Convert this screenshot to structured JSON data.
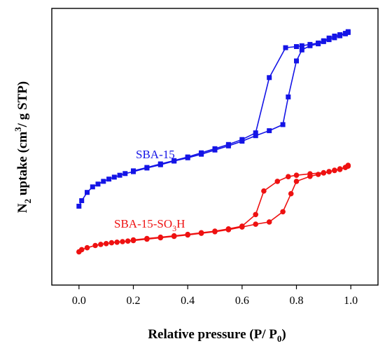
{
  "chart_data": {
    "type": "scatter",
    "xlabel_main": "Relative pressure (P/ P",
    "xlabel_sub": "0",
    "xlabel_end": ")",
    "ylabel_pre": "N",
    "ylabel_sub": "2",
    "ylabel_mid": " uptake (cm",
    "ylabel_sup": "3",
    "ylabel_end": "/ g STP)",
    "xlim": [
      -0.1,
      1.1
    ],
    "ylim": [
      0,
      100
    ],
    "y_ticks_labeled": false,
    "x_ticks": [
      "0.0",
      "0.2",
      "0.4",
      "0.6",
      "0.8",
      "1.0"
    ],
    "series": [
      {
        "name_pre": "SBA-15",
        "name_sub": "",
        "name_end": "",
        "color": "#1414e6",
        "marker": "square",
        "adsorption": [
          [
            0.0,
            28.5
          ],
          [
            0.01,
            30.5
          ],
          [
            0.03,
            33.5
          ],
          [
            0.05,
            35.5
          ],
          [
            0.07,
            36.5
          ],
          [
            0.09,
            37.5
          ],
          [
            0.11,
            38.3
          ],
          [
            0.13,
            39.0
          ],
          [
            0.15,
            39.7
          ],
          [
            0.17,
            40.3
          ],
          [
            0.2,
            41.0
          ],
          [
            0.25,
            42.3
          ],
          [
            0.3,
            43.5
          ],
          [
            0.35,
            44.8
          ],
          [
            0.4,
            46.0
          ],
          [
            0.45,
            47.3
          ],
          [
            0.5,
            48.8
          ],
          [
            0.55,
            50.3
          ],
          [
            0.6,
            52.0
          ],
          [
            0.65,
            54.0
          ],
          [
            0.7,
            55.8
          ],
          [
            0.75,
            58.0
          ],
          [
            0.77,
            68.0
          ],
          [
            0.8,
            81.0
          ],
          [
            0.82,
            85.0
          ],
          [
            0.85,
            86.5
          ],
          [
            0.88,
            87.2
          ],
          [
            0.9,
            88.0
          ],
          [
            0.92,
            88.7
          ],
          [
            0.94,
            89.4
          ],
          [
            0.96,
            90.1
          ],
          [
            0.98,
            90.8
          ],
          [
            0.99,
            91.3
          ]
        ],
        "desorption": [
          [
            0.99,
            91.6
          ],
          [
            0.98,
            91.0
          ],
          [
            0.96,
            90.5
          ],
          [
            0.94,
            90.0
          ],
          [
            0.92,
            89.3
          ],
          [
            0.9,
            88.3
          ],
          [
            0.88,
            87.5
          ],
          [
            0.85,
            87.0
          ],
          [
            0.82,
            86.5
          ],
          [
            0.8,
            86.2
          ],
          [
            0.76,
            85.8
          ],
          [
            0.7,
            75.0
          ],
          [
            0.65,
            55.0
          ],
          [
            0.6,
            52.6
          ],
          [
            0.55,
            50.8
          ],
          [
            0.5,
            49.3
          ],
          [
            0.45,
            47.8
          ],
          [
            0.4,
            46.3
          ],
          [
            0.35,
            45.0
          ],
          [
            0.3,
            43.8
          ],
          [
            0.25,
            42.5
          ],
          [
            0.2,
            41.3
          ]
        ]
      },
      {
        "name_pre": "SBA-15-SO",
        "name_sub": "3",
        "name_end": "H",
        "color": "#ee1111",
        "marker": "circle",
        "adsorption": [
          [
            0.0,
            12.0
          ],
          [
            0.01,
            12.8
          ],
          [
            0.03,
            13.5
          ],
          [
            0.06,
            14.3
          ],
          [
            0.08,
            14.7
          ],
          [
            0.1,
            15.0
          ],
          [
            0.12,
            15.3
          ],
          [
            0.14,
            15.5
          ],
          [
            0.16,
            15.7
          ],
          [
            0.18,
            15.9
          ],
          [
            0.2,
            16.1
          ],
          [
            0.25,
            16.6
          ],
          [
            0.3,
            17.1
          ],
          [
            0.35,
            17.6
          ],
          [
            0.4,
            18.1
          ],
          [
            0.45,
            18.7
          ],
          [
            0.5,
            19.3
          ],
          [
            0.55,
            20.0
          ],
          [
            0.6,
            21.0
          ],
          [
            0.65,
            22.0
          ],
          [
            0.7,
            22.8
          ],
          [
            0.75,
            26.5
          ],
          [
            0.78,
            33.0
          ],
          [
            0.8,
            37.5
          ],
          [
            0.85,
            39.3
          ],
          [
            0.88,
            40.0
          ],
          [
            0.9,
            40.5
          ],
          [
            0.92,
            41.0
          ],
          [
            0.94,
            41.5
          ],
          [
            0.96,
            42.0
          ],
          [
            0.98,
            42.5
          ],
          [
            0.99,
            43.3
          ]
        ],
        "desorption": [
          [
            0.99,
            43.0
          ],
          [
            0.98,
            42.5
          ],
          [
            0.96,
            41.8
          ],
          [
            0.94,
            41.4
          ],
          [
            0.92,
            41.0
          ],
          [
            0.9,
            40.6
          ],
          [
            0.85,
            40.2
          ],
          [
            0.8,
            39.7
          ],
          [
            0.77,
            39.2
          ],
          [
            0.73,
            37.5
          ],
          [
            0.68,
            34.0
          ],
          [
            0.65,
            25.5
          ],
          [
            0.6,
            21.3
          ],
          [
            0.55,
            20.3
          ],
          [
            0.5,
            19.5
          ],
          [
            0.45,
            18.9
          ],
          [
            0.4,
            18.3
          ],
          [
            0.35,
            17.8
          ],
          [
            0.3,
            17.3
          ],
          [
            0.25,
            16.8
          ],
          [
            0.2,
            16.3
          ]
        ]
      }
    ]
  }
}
